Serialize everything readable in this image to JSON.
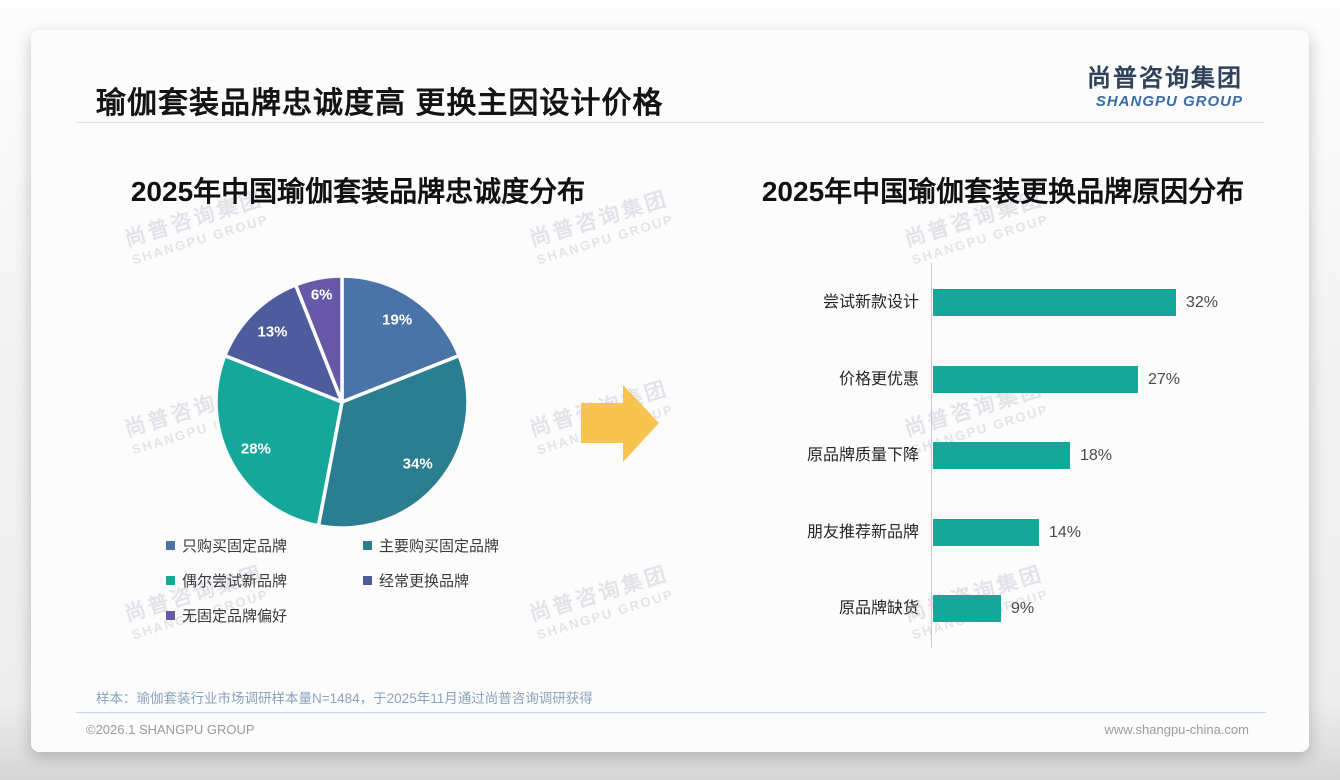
{
  "page": {
    "title": "瑜伽套装品牌忠诚度高 更换主因设计价格",
    "logo": {
      "cn": "尚普咨询集团",
      "en": "SHANGPU GROUP"
    },
    "note": "样本：瑜伽套装行业市场调研样本量N=1484，于2025年11月通过尚普咨询调研获得",
    "footer_left": "©2026.1 SHANGPU GROUP",
    "footer_right": "www.shangpu-china.com",
    "watermark": {
      "line1": "尚普咨询集团",
      "line2": "SHANGPU GROUP"
    }
  },
  "colors": {
    "arrow": "#f7c450",
    "bar": "#14a79a",
    "card_background": "#fcfcfc"
  },
  "chart_data": [
    {
      "type": "pie",
      "title": "2025年中国瑜伽套装品牌忠诚度分布",
      "start_angle": "top",
      "direction": "clockwise",
      "legend_position": "bottom",
      "slices": [
        {
          "label": "只购买固定品牌",
          "value": 19,
          "data_label": "19%",
          "color": "#4a73a7"
        },
        {
          "label": "主要购买固定品牌",
          "value": 34,
          "data_label": "34%",
          "color": "#2b7e90"
        },
        {
          "label": "偶尔尝试新品牌",
          "value": 28,
          "data_label": "28%",
          "color": "#14a79a"
        },
        {
          "label": "经常更换品牌",
          "value": 13,
          "data_label": "13%",
          "color": "#4e5c9e"
        },
        {
          "label": "无固定品牌偏好",
          "value": 6,
          "data_label": "6%",
          "color": "#6859a8"
        }
      ]
    },
    {
      "type": "bar",
      "title": "2025年中国瑜伽套装更换品牌原因分布",
      "orientation": "horizontal",
      "xlim": [
        0,
        35
      ],
      "grid": false,
      "bars": [
        {
          "label": "尝试新款设计",
          "value": 32,
          "data_label": "32%"
        },
        {
          "label": "价格更优惠",
          "value": 27,
          "data_label": "27%"
        },
        {
          "label": "原品牌质量下降",
          "value": 18,
          "data_label": "18%"
        },
        {
          "label": "朋友推荐新品牌",
          "value": 14,
          "data_label": "14%"
        },
        {
          "label": "原品牌缺货",
          "value": 9,
          "data_label": "9%"
        }
      ]
    }
  ]
}
